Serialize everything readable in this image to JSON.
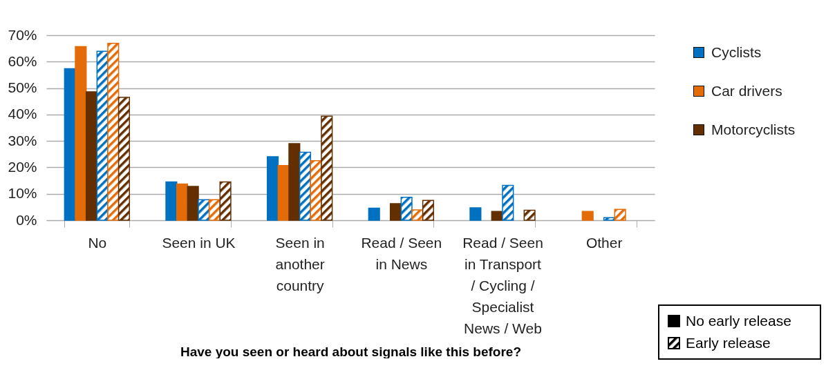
{
  "chart_data": {
    "type": "bar",
    "xlabel": "Have you seen or heard about signals like this before?",
    "categories": [
      "No",
      "Seen in UK",
      "Seen in another country",
      "Read / Seen in News",
      "Read / Seen in Transport / Cycling / Specialist News / Web",
      "Other"
    ],
    "series": [
      {
        "name": "Cyclists",
        "color": "#0070c0",
        "values": [
          57.3,
          14.5,
          24,
          4.6,
          4.7,
          null
        ]
      },
      {
        "name": "Car drivers",
        "color": "#e36c09",
        "values": [
          65.7,
          13.7,
          20.7,
          null,
          null,
          3.3
        ]
      },
      {
        "name": "Motorcyclists",
        "color": "#632f00",
        "values": [
          48.6,
          12.8,
          29,
          6.3,
          3.3,
          null
        ]
      },
      {
        "color": "#0070c0",
        "values": [
          63.9,
          7.8,
          25.7,
          8.7,
          13.2,
          1
        ]
      },
      {
        "color": "#e36c09",
        "values": [
          66.9,
          7.8,
          22.5,
          3.9,
          null,
          4.1
        ]
      },
      {
        "color": "#632f00",
        "values": [
          46.5,
          14.5,
          39.4,
          7.5,
          3.8,
          null
        ]
      }
    ],
    "ylim": [
      0,
      70
    ],
    "yticks": [
      {
        "value": 0,
        "label": "0%"
      },
      {
        "value": 10,
        "label": "10%"
      },
      {
        "value": 20,
        "label": "20%"
      },
      {
        "value": 30,
        "label": "30%"
      },
      {
        "value": 40,
        "label": "40%"
      },
      {
        "value": 50,
        "label": "50%"
      },
      {
        "value": 60,
        "label": "60%"
      },
      {
        "value": 70,
        "label": "70%"
      }
    ],
    "grid": "y",
    "legend": "right",
    "annotations": [
      "No early release",
      "Early release"
    ]
  }
}
